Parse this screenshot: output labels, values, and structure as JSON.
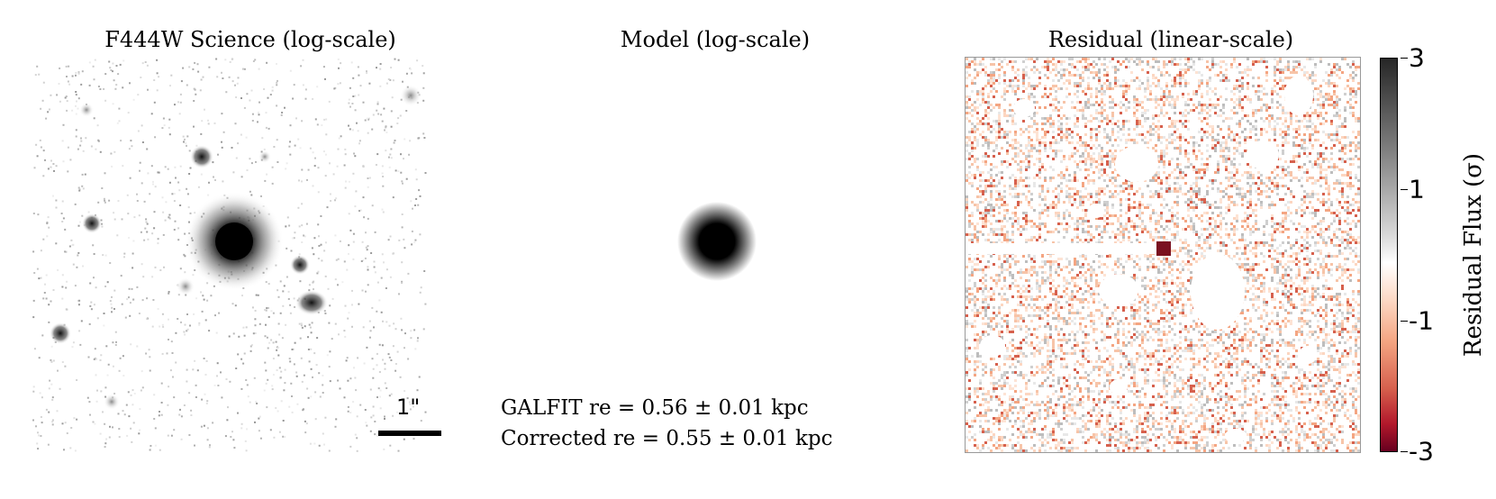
{
  "panels": {
    "science_title": "F444W Science (log-scale)",
    "model_title": "Model (log-scale)",
    "residual_title": "Residual (linear-scale)"
  },
  "scalebar": {
    "label": "1\""
  },
  "annotation": {
    "line1": "GALFIT re = 0.56 ± 0.01 kpc",
    "line2": "Corrected re = 0.55 ± 0.01 kpc"
  },
  "colorbar": {
    "title": "Residual Flux (σ)",
    "ticks": [
      "3",
      "1",
      "-1",
      "-3"
    ],
    "colors": {
      "top": "#262626",
      "middle": "#ffffff",
      "bottom": "#67001f"
    }
  }
}
